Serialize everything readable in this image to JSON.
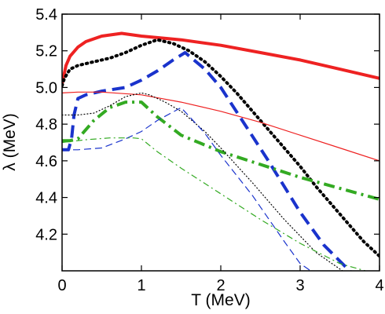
{
  "chart_data": {
    "type": "line",
    "xlabel": "T (MeV)",
    "ylabel": "λ (MeV)",
    "xlim": [
      0,
      4
    ],
    "ylim": [
      4.0,
      5.4
    ],
    "x_ticks": [
      0,
      1,
      2,
      3,
      4
    ],
    "y_ticks": [
      4.2,
      4.4,
      4.6,
      4.8,
      5.0,
      5.2,
      5.4
    ],
    "x_tick_labels": [
      "0",
      "1",
      "2",
      "3",
      "4"
    ],
    "y_tick_labels": [
      "4.2",
      "4.4",
      "4.6",
      "4.8",
      "5.0",
      "5.2",
      "5.4"
    ],
    "grid": false,
    "series": [
      {
        "color": "#ee2222",
        "style": "solid",
        "width": "thick",
        "x": [
          0,
          0.05,
          0.1,
          0.2,
          0.3,
          0.5,
          0.75,
          1.0,
          1.5,
          2.0,
          2.5,
          3.0,
          3.5,
          4.0
        ],
        "y": [
          5.02,
          5.12,
          5.17,
          5.22,
          5.25,
          5.28,
          5.295,
          5.28,
          5.26,
          5.23,
          5.19,
          5.15,
          5.1,
          5.05
        ]
      },
      {
        "color": "#000000",
        "style": "dotted",
        "width": "thick",
        "x": [
          0,
          0.03,
          0.1,
          0.2,
          0.4,
          0.6,
          0.8,
          1.0,
          1.2,
          1.4,
          1.6,
          1.8,
          2.0,
          2.2,
          2.4,
          2.6,
          2.8,
          3.0,
          3.2,
          3.4,
          3.6,
          3.8,
          4.0
        ],
        "y": [
          5.01,
          5.05,
          5.1,
          5.12,
          5.14,
          5.16,
          5.19,
          5.23,
          5.26,
          5.24,
          5.2,
          5.14,
          5.06,
          4.97,
          4.87,
          4.77,
          4.67,
          4.57,
          4.46,
          4.36,
          4.26,
          4.16,
          4.08
        ]
      },
      {
        "color": "#1a33cc",
        "style": "dashed",
        "width": "thick",
        "x": [
          0.0,
          0.08,
          0.12,
          0.15,
          0.2,
          0.3,
          0.5,
          0.8,
          1.0,
          1.2,
          1.4,
          1.55,
          1.8,
          2.0,
          2.3,
          2.6,
          3.0,
          3.3,
          3.6,
          3.72
        ],
        "y": [
          4.66,
          4.66,
          4.72,
          4.85,
          4.94,
          4.96,
          4.98,
          5.0,
          5.04,
          5.09,
          5.15,
          5.19,
          5.1,
          5.0,
          4.8,
          4.6,
          4.32,
          4.14,
          4.01,
          3.96
        ]
      },
      {
        "color": "#33aa22",
        "style": "dashdot",
        "width": "thick",
        "x": [
          0.0,
          0.1,
          0.2,
          0.4,
          0.6,
          0.8,
          1.0,
          1.2,
          1.5,
          2.0,
          2.5,
          3.0,
          3.5,
          4.0
        ],
        "y": [
          4.71,
          4.71,
          4.72,
          4.82,
          4.89,
          4.92,
          4.92,
          4.84,
          4.74,
          4.65,
          4.58,
          4.51,
          4.45,
          4.39
        ]
      },
      {
        "color": "#ee2222",
        "style": "solid",
        "width": "thin",
        "x": [
          0.0,
          0.2,
          0.5,
          1.0,
          1.5,
          2.0,
          2.5,
          3.0,
          3.5,
          4.0
        ],
        "y": [
          4.97,
          4.975,
          4.975,
          4.96,
          4.92,
          4.87,
          4.81,
          4.74,
          4.67,
          4.6
        ]
      },
      {
        "color": "#000000",
        "style": "dotted",
        "width": "thin",
        "x": [
          0.0,
          0.1,
          0.2,
          0.4,
          0.6,
          0.8,
          1.0,
          1.1,
          1.3,
          1.5,
          1.8,
          2.0,
          2.4,
          2.8,
          3.2,
          3.6,
          3.8
        ],
        "y": [
          4.85,
          4.85,
          4.85,
          4.86,
          4.9,
          4.95,
          4.97,
          4.96,
          4.92,
          4.87,
          4.76,
          4.67,
          4.48,
          4.28,
          4.1,
          3.98,
          3.95
        ]
      },
      {
        "color": "#1a33cc",
        "style": "dashed",
        "width": "thin",
        "x": [
          0.0,
          0.2,
          0.5,
          0.8,
          1.0,
          1.2,
          1.5,
          1.8,
          2.0,
          2.4,
          2.8,
          3.0,
          3.3
        ],
        "y": [
          4.66,
          4.66,
          4.67,
          4.72,
          4.76,
          4.82,
          4.89,
          4.75,
          4.63,
          4.41,
          4.16,
          4.04,
          3.95
        ]
      },
      {
        "color": "#33aa22",
        "style": "dashdot",
        "width": "thin",
        "x": [
          0.0,
          0.3,
          0.6,
          0.9,
          1.0,
          1.2,
          1.5,
          2.0,
          2.5,
          3.0,
          3.5,
          3.9
        ],
        "y": [
          4.7,
          4.715,
          4.725,
          4.725,
          4.72,
          4.65,
          4.56,
          4.42,
          4.28,
          4.15,
          4.04,
          3.99
        ]
      }
    ]
  }
}
